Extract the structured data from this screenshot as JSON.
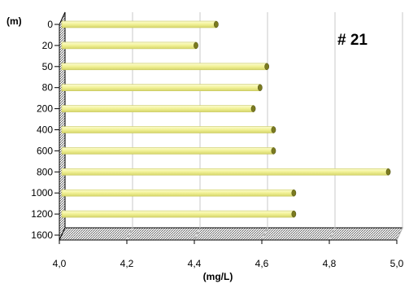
{
  "chart_data": {
    "type": "bar",
    "orientation": "horizontal",
    "categories": [
      "0",
      "20",
      "50",
      "80",
      "200",
      "400",
      "600",
      "800",
      "1000",
      "1200",
      "1600"
    ],
    "values": [
      4.46,
      4.4,
      4.61,
      4.59,
      4.57,
      4.63,
      4.63,
      4.97,
      4.69,
      4.69,
      null
    ],
    "xlim": [
      4.0,
      5.0
    ],
    "xticks": [
      "4,0",
      "4,2",
      "4,4",
      "4,6",
      "4,8",
      "5,0"
    ],
    "xtick_values": [
      4.0,
      4.2,
      4.4,
      4.6,
      4.8,
      5.0
    ],
    "xlabel": "(mg/L)",
    "ylabel": "(m)",
    "annotation": "# 21",
    "grid": "vertical",
    "colors": {
      "bar_fill": "#f5f5a0",
      "bar_edge": "#c8c860",
      "bar_cap": "#7a7a20",
      "grid": "#c8c8c8",
      "axis": "#000000"
    }
  }
}
